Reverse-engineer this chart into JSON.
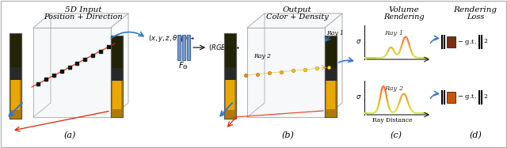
{
  "bg_color": "#ffffff",
  "blue": "#3377cc",
  "red": "#dd2200",
  "orange": "#ff7700",
  "yellow": "#ffcc00",
  "dark_brown": "#7a3010",
  "orange_box": "#cc5500",
  "nn_color": "#7a9ec8",
  "nn_edge": "#4466aa",
  "gray_cube": "#cccccc",
  "gray_cube_edge": "#888888",
  "title_a1": "5D Input",
  "title_a2": "Position + Direction",
  "title_b1": "Output",
  "title_b2": "Color + Density",
  "title_c1": "Volume",
  "title_c2": "Rendering",
  "title_d1": "Rendering",
  "title_d2": "Loss",
  "label_a": "(a)",
  "label_b": "(b)",
  "label_c": "(c)",
  "label_d": "(d)",
  "ray1": "Ray 1",
  "ray2": "Ray 2",
  "ray_dist": "Ray Distance",
  "eq_input": "$(x,y,z,\\theta,\\phi)\\rightarrow$",
  "eq_output": "$(RGB\\sigma)\\rightarrow$",
  "f_theta": "$F_{\\Theta}$",
  "sigma": "$\\sigma$"
}
